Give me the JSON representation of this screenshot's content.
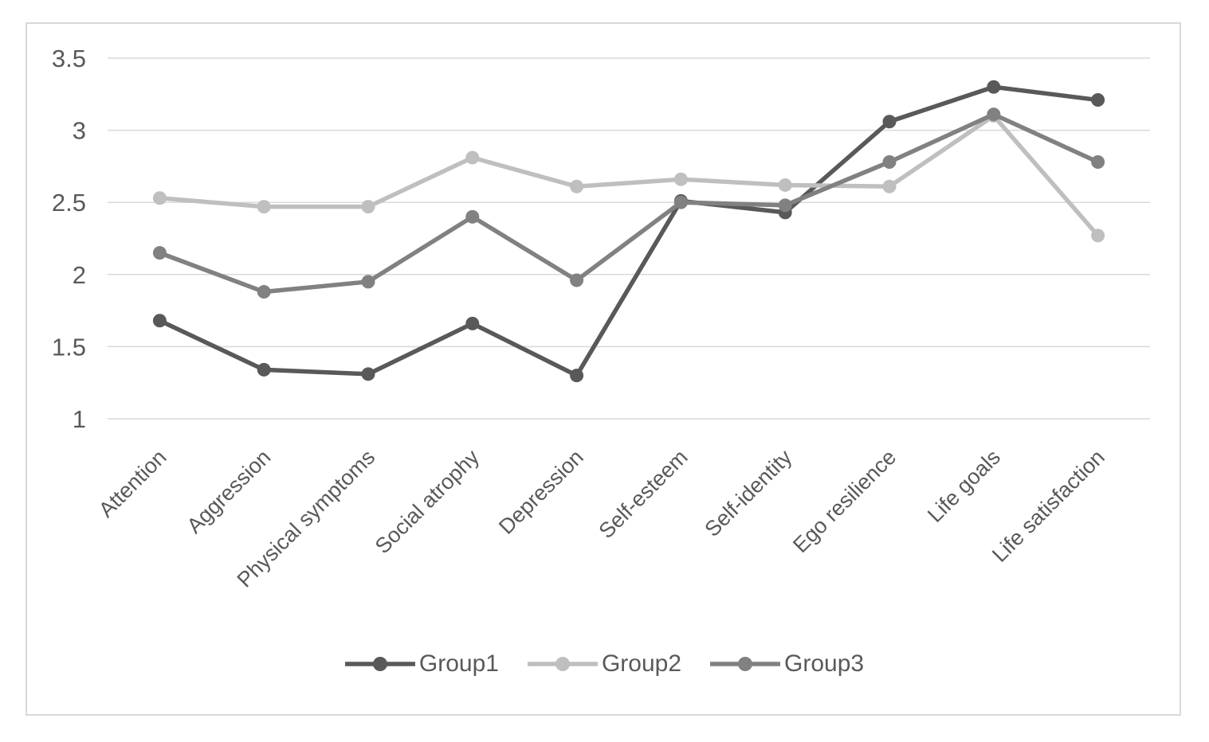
{
  "chart_data": {
    "type": "line",
    "title": "",
    "xlabel": "",
    "ylabel": "",
    "categories": [
      "Attention",
      "Aggression",
      "Physical symptoms",
      "Social atrophy",
      "Depression",
      "Self-esteem",
      "Self-identity",
      "Ego resilience",
      "Life goals",
      "Life satisfaction"
    ],
    "series": [
      {
        "name": "Group1",
        "color": "#595959",
        "values": [
          1.68,
          1.34,
          1.31,
          1.66,
          1.3,
          2.51,
          2.43,
          3.06,
          3.3,
          3.21
        ]
      },
      {
        "name": "Group2",
        "color": "#bfbfbf",
        "values": [
          2.53,
          2.47,
          2.47,
          2.81,
          2.61,
          2.66,
          2.62,
          2.61,
          3.1,
          2.27
        ]
      },
      {
        "name": "Group3",
        "color": "#818181",
        "values": [
          2.15,
          1.88,
          1.95,
          2.4,
          1.96,
          2.5,
          2.48,
          2.78,
          3.11,
          2.78
        ]
      }
    ],
    "ylim": [
      1,
      3.5
    ],
    "yticks": [
      {
        "value": 3.5,
        "label": "3.5"
      },
      {
        "value": 3,
        "label": "3"
      },
      {
        "value": 2.5,
        "label": "2.5"
      },
      {
        "value": 2,
        "label": "2"
      },
      {
        "value": 1.5,
        "label": "1.5"
      },
      {
        "value": 1,
        "label": "1"
      }
    ],
    "grid": true,
    "grid_color": "#d9d9d9",
    "axis_text_color": "#595959",
    "frame_border_color": "#d9d9d9",
    "legend_position": "bottom"
  }
}
